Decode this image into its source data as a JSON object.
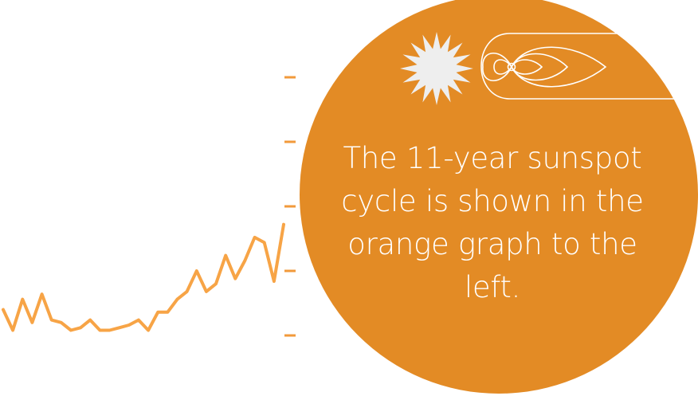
{
  "colors": {
    "circle_fill": "#e38b25",
    "line_color": "#f7a446",
    "tick_color": "#f29a3b",
    "sun_fill": "#eeeeee",
    "field_lines": "#ffffff",
    "caption_text": "#ffffff"
  },
  "graphic": {
    "sun_icon": "sun-icon",
    "magnetic_field_icon": "magnetosphere-icon"
  },
  "caption": {
    "lines": [
      "The 11-year sunspot",
      "cycle is shown in the",
      "orange graph to the",
      "left."
    ]
  },
  "chart_data": {
    "type": "line",
    "title": "",
    "xlabel": "",
    "ylabel": "",
    "tick_labels": [],
    "series": [
      {
        "values": [
          0.1,
          0.02,
          0.14,
          0.05,
          0.16,
          0.06,
          0.05,
          0.02,
          0.03,
          0.06,
          0.02,
          0.02,
          0.03,
          0.04,
          0.06,
          0.02,
          0.09,
          0.09,
          0.14,
          0.17,
          0.25,
          0.17,
          0.2,
          0.31,
          0.22,
          0.29,
          0.38,
          0.36,
          0.21,
          0.43
        ]
      }
    ],
    "y_ticks_count": 5,
    "grid": false
  }
}
